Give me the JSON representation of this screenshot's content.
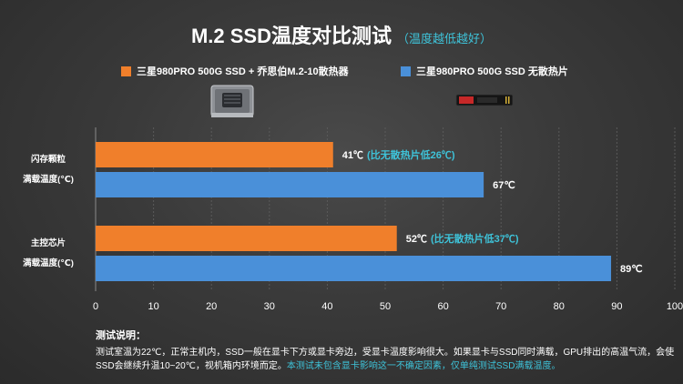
{
  "chart_data": {
    "type": "bar",
    "orientation": "horizontal",
    "title": "M.2 SSD温度对比测试",
    "subtitle": "（温度越低越好）",
    "categories": [
      [
        "闪存颗粒",
        "满载温度(℃)"
      ],
      [
        "主控芯片",
        "满载温度(℃)"
      ]
    ],
    "series": [
      {
        "name": "三星980PRO 500G SSD + 乔思伯M.2-10散热器",
        "color": "#f07f2b",
        "values": [
          41,
          52
        ],
        "labels": [
          "41℃",
          "52℃"
        ],
        "notes": [
          "(比无散热片低26℃)",
          "(比无散热片低37℃)"
        ]
      },
      {
        "name": "三星980PRO 500G SSD 无散热片",
        "color": "#4a90d9",
        "values": [
          67,
          89
        ],
        "labels": [
          "67℃",
          "89℃"
        ],
        "notes": [
          "",
          ""
        ]
      }
    ],
    "xlim": [
      0,
      100
    ],
    "xticks": [
      "0",
      "10",
      "20",
      "30",
      "40",
      "50",
      "60",
      "70",
      "80",
      "90",
      "100"
    ],
    "grid": true,
    "note_color": "#3ec3d9"
  },
  "notes": {
    "title": "测试说明：",
    "body": "测试室温为22℃，正常主机内，SSD一般在显卡下方或显卡旁边，受显卡温度影响很大。如果显卡与SSD同时满载，GPU排出的高温气流，会使SSD会继续升温10~20℃，视机箱内环境而定。",
    "highlight": "本测试未包含显卡影响这一不确定因素，仅单纯测试SSD满载温度。"
  }
}
